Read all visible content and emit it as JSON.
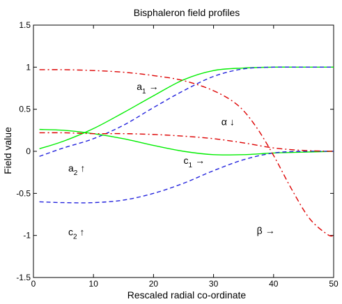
{
  "chart_data": {
    "type": "line",
    "title": "Bisphaleron field profiles",
    "xlabel": "Rescaled radial co-ordinate",
    "ylabel": "Field value",
    "xlim": [
      0,
      50
    ],
    "ylim": [
      -1.5,
      1.5
    ],
    "xticks": [
      0,
      10,
      20,
      30,
      40,
      50
    ],
    "yticks": [
      -1.5,
      -1,
      -0.5,
      0,
      0.5,
      1,
      1.5
    ],
    "ytick_labels": [
      "-1.5",
      "-1",
      "-0.5",
      "0",
      "0.5",
      "1",
      "1.5"
    ],
    "grid": false,
    "series": [
      {
        "id": "a1",
        "color": "#00ee00",
        "dash": "solid",
        "x": [
          1,
          5,
          10,
          15,
          20,
          25,
          30,
          35,
          40,
          45,
          50
        ],
        "y": [
          0.03,
          0.12,
          0.27,
          0.46,
          0.66,
          0.85,
          0.96,
          0.99,
          1.0,
          1.0,
          1.0
        ]
      },
      {
        "id": "a2",
        "color": "#2222dd",
        "dash": "dashed",
        "x": [
          1,
          5,
          10,
          15,
          20,
          25,
          30,
          35,
          40,
          45,
          50
        ],
        "y": [
          -0.06,
          0.04,
          0.15,
          0.31,
          0.52,
          0.72,
          0.89,
          0.98,
          1.0,
          1.0,
          1.0
        ]
      },
      {
        "id": "c1",
        "color": "#00ee00",
        "dash": "solid",
        "x": [
          1,
          5,
          10,
          15,
          20,
          25,
          30,
          35,
          40,
          45,
          50
        ],
        "y": [
          0.26,
          0.25,
          0.21,
          0.15,
          0.07,
          0.0,
          -0.04,
          -0.04,
          -0.02,
          -0.01,
          0.0
        ]
      },
      {
        "id": "c2",
        "color": "#2222dd",
        "dash": "dashed",
        "x": [
          1,
          5,
          10,
          15,
          20,
          25,
          30,
          35,
          40,
          45,
          50
        ],
        "y": [
          -0.6,
          -0.61,
          -0.61,
          -0.58,
          -0.5,
          -0.38,
          -0.23,
          -0.1,
          -0.02,
          0.0,
          0.0
        ]
      },
      {
        "id": "alpha",
        "color": "#dd0000",
        "dash": "dashdot",
        "x": [
          1,
          5,
          10,
          15,
          20,
          25,
          30,
          35,
          40,
          45,
          50
        ],
        "y": [
          0.22,
          0.22,
          0.21,
          0.21,
          0.2,
          0.18,
          0.15,
          0.1,
          0.04,
          0.01,
          0.0
        ]
      },
      {
        "id": "beta",
        "color": "#dd0000",
        "dash": "dashdot",
        "x": [
          1,
          5,
          10,
          15,
          20,
          25,
          30,
          34,
          37,
          40,
          43,
          46,
          49,
          50
        ],
        "y": [
          0.97,
          0.97,
          0.96,
          0.94,
          0.9,
          0.84,
          0.72,
          0.55,
          0.3,
          -0.05,
          -0.45,
          -0.8,
          -0.99,
          -1.0
        ]
      }
    ],
    "annotations": [
      {
        "name": "a1",
        "base": "a",
        "sub": "1",
        "arrow": "→",
        "x": 17.2,
        "y": 0.73
      },
      {
        "name": "a2",
        "base": "a",
        "sub": "2",
        "arrow": "↑",
        "x": 5.8,
        "y": -0.24
      },
      {
        "name": "c1",
        "base": "c",
        "sub": "1",
        "arrow": "→",
        "x": 25.0,
        "y": -0.15
      },
      {
        "name": "c2",
        "base": "c",
        "sub": "2",
        "arrow": "↑",
        "x": 5.8,
        "y": -1.0
      },
      {
        "name": "alpha",
        "base": "α",
        "sub": "",
        "arrow": "↓",
        "x": 31.3,
        "y": 0.31
      },
      {
        "name": "beta",
        "base": "β",
        "sub": "",
        "arrow": "→",
        "x": 37.2,
        "y": -0.98
      }
    ]
  }
}
